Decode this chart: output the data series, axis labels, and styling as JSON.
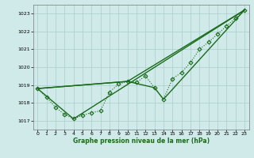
{
  "title": "Graphe pression niveau de la mer (hPa)",
  "ylim": [
    1016.5,
    1023.5
  ],
  "yticks": [
    1017,
    1018,
    1019,
    1020,
    1021,
    1022,
    1023
  ],
  "xticks": [
    0,
    1,
    2,
    3,
    4,
    5,
    6,
    7,
    8,
    9,
    10,
    11,
    12,
    13,
    14,
    15,
    16,
    17,
    18,
    19,
    20,
    21,
    22,
    23
  ],
  "bg_color": "#d0eaea",
  "line_color": "#1a6b1a",
  "grid_color": "#aacccc",
  "series": [
    {
      "x": [
        0,
        1,
        2,
        3,
        4,
        5,
        6,
        7,
        8,
        9,
        10,
        11,
        12,
        13,
        14,
        15,
        16,
        17,
        18,
        19,
        20,
        21,
        22,
        23
      ],
      "y": [
        1018.8,
        1018.3,
        1017.75,
        1017.35,
        1017.1,
        1017.3,
        1017.45,
        1017.55,
        1018.6,
        1019.05,
        1019.2,
        1019.15,
        1019.5,
        1018.85,
        1018.2,
        1019.35,
        1019.7,
        1020.25,
        1021.0,
        1021.4,
        1021.85,
        1022.3,
        1022.75,
        1023.2
      ],
      "marker": "D",
      "markersize": 2.5,
      "linewidth": 0.8,
      "linestyle": ":"
    },
    {
      "x": [
        0,
        4,
        23
      ],
      "y": [
        1018.8,
        1017.1,
        1023.2
      ],
      "marker": null,
      "markersize": 0,
      "linewidth": 1.0,
      "linestyle": "-"
    },
    {
      "x": [
        0,
        10,
        23
      ],
      "y": [
        1018.8,
        1019.2,
        1023.2
      ],
      "marker": null,
      "markersize": 0,
      "linewidth": 1.0,
      "linestyle": "-"
    },
    {
      "x": [
        0,
        10,
        13,
        14,
        23
      ],
      "y": [
        1018.8,
        1019.2,
        1018.85,
        1018.2,
        1023.2
      ],
      "marker": null,
      "markersize": 0,
      "linewidth": 1.0,
      "linestyle": "-"
    }
  ]
}
